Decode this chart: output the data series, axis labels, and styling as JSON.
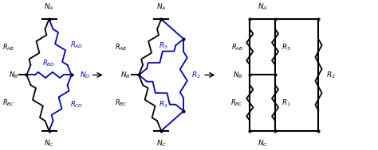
{
  "bg_color": "#ffffff",
  "black": "#000000",
  "blue": "#0000bb",
  "fig_width": 4.74,
  "fig_height": 1.89,
  "dpi": 100,
  "xlim": [
    0,
    10
  ],
  "ylim": [
    0,
    4
  ]
}
